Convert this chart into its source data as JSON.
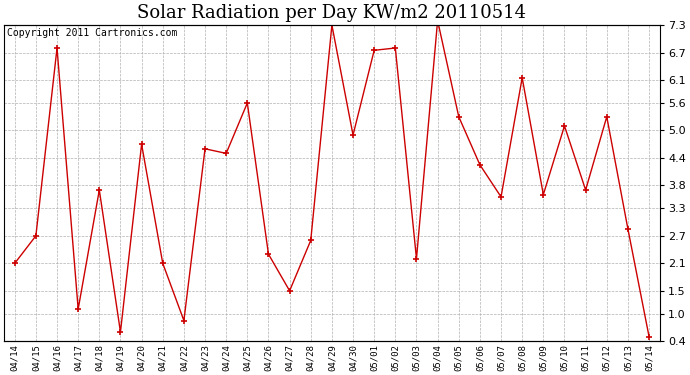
{
  "title": "Solar Radiation per Day KW/m2 20110514",
  "copyright": "Copyright 2011 Cartronics.com",
  "labels": [
    "04/14",
    "04/15",
    "04/16",
    "04/17",
    "04/18",
    "04/19",
    "04/20",
    "04/21",
    "04/22",
    "04/23",
    "04/24",
    "04/25",
    "04/26",
    "04/27",
    "04/28",
    "04/29",
    "04/30",
    "05/01",
    "05/02",
    "05/03",
    "05/04",
    "05/05",
    "05/06",
    "05/07",
    "05/08",
    "05/09",
    "05/10",
    "05/11",
    "05/12",
    "05/13",
    "05/14"
  ],
  "values": [
    2.1,
    2.7,
    6.8,
    1.1,
    3.7,
    0.6,
    4.7,
    2.1,
    0.85,
    4.6,
    4.5,
    5.6,
    2.3,
    1.5,
    2.6,
    7.3,
    4.9,
    6.75,
    6.8,
    2.2,
    7.4,
    5.3,
    4.25,
    3.55,
    6.15,
    3.6,
    5.1,
    3.7,
    5.3,
    2.85,
    0.5
  ],
  "line_color": "#cc0000",
  "marker": "+",
  "marker_color": "#cc0000",
  "bg_color": "#ffffff",
  "plot_bg_color": "#ffffff",
  "grid_color": "#b0b0b0",
  "ylim": [
    0.4,
    7.3
  ],
  "yticks": [
    0.4,
    1.0,
    1.5,
    2.1,
    2.7,
    3.3,
    3.8,
    4.4,
    5.0,
    5.6,
    6.1,
    6.7,
    7.3
  ],
  "title_fontsize": 13,
  "copyright_fontsize": 7
}
